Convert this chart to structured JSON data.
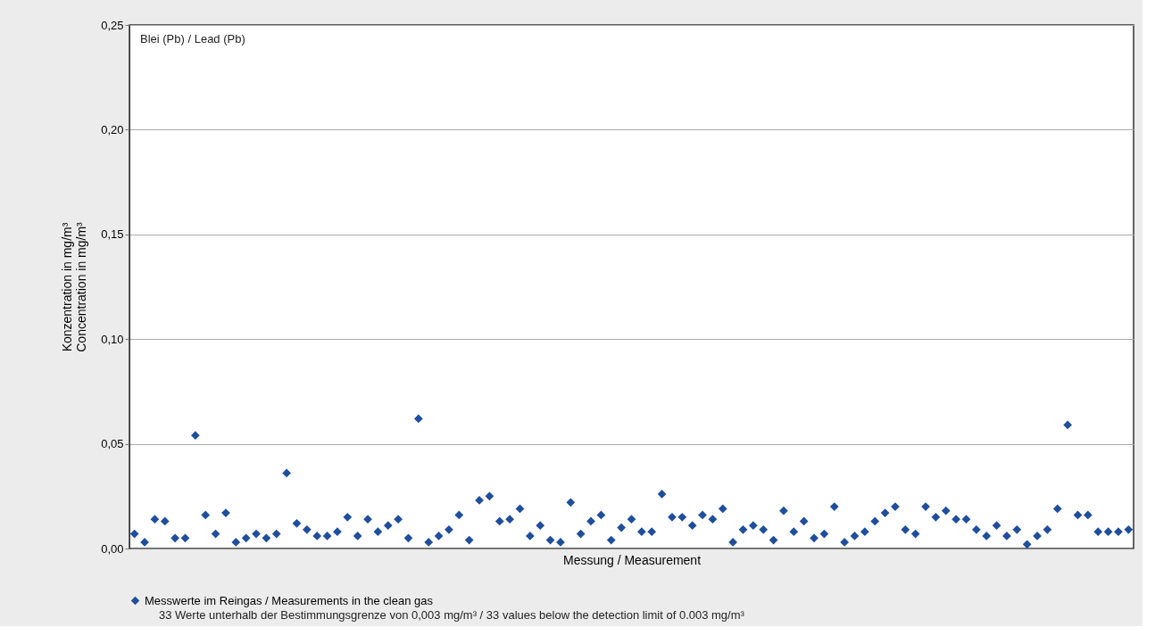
{
  "chart_data": {
    "type": "scatter",
    "annotations": [
      "Blei (Pb) / Lead (Pb)",
      "33 Werte unterhalb der Bestimmungsgrenze von 0,003 mg/m³ / 33 values below the detection limit of 0.003 mg/m³"
    ],
    "xlabel": "Messung / Measurement",
    "ylabel": [
      "Konzentration in mg/m³",
      "Concentration in mg/m³"
    ],
    "categories": [
      null,
      null,
      null,
      null,
      null,
      null,
      null,
      null,
      null,
      null,
      null,
      null,
      null,
      null,
      null,
      null,
      null,
      null,
      null,
      null,
      null,
      null,
      null,
      null,
      null,
      null,
      null,
      null,
      null,
      null,
      null,
      null,
      null,
      null,
      null,
      null,
      null,
      null,
      null,
      null,
      null,
      null,
      null,
      null,
      null,
      null,
      null,
      null,
      null,
      null,
      null,
      null,
      null,
      null,
      null,
      null,
      null,
      null,
      null,
      null,
      null,
      null,
      null,
      null,
      null,
      null,
      null,
      null,
      null,
      null,
      null,
      null,
      null,
      null,
      null,
      null,
      null,
      null,
      null,
      null,
      null,
      null,
      null,
      null,
      null,
      null,
      null,
      null,
      null,
      null,
      null,
      null,
      null,
      null,
      null,
      null,
      null,
      null,
      null
    ],
    "series": [
      {
        "name": "Messwerte im Reingas / Measurements in the clean gas",
        "color": "#1f4e9c",
        "values": [
          0.007,
          0.003,
          0.014,
          0.013,
          0.005,
          0.005,
          0.054,
          0.016,
          0.007,
          0.017,
          0.003,
          0.005,
          0.007,
          0.005,
          0.007,
          0.036,
          0.012,
          0.009,
          0.006,
          0.006,
          0.008,
          0.015,
          0.006,
          0.014,
          0.008,
          0.011,
          0.014,
          0.005,
          0.062,
          0.003,
          0.006,
          0.009,
          0.016,
          0.004,
          0.023,
          0.025,
          0.013,
          0.014,
          0.019,
          0.006,
          0.011,
          0.004,
          0.003,
          0.022,
          0.007,
          0.013,
          0.016,
          0.004,
          0.01,
          0.014,
          0.008,
          0.008,
          0.026,
          0.015,
          0.015,
          0.011,
          0.016,
          0.014,
          0.019,
          0.003,
          0.009,
          0.011,
          0.009,
          0.004,
          0.018,
          0.008,
          0.013,
          0.005,
          0.007,
          0.02,
          0.003,
          0.006,
          0.008,
          0.013,
          0.017,
          0.02,
          0.009,
          0.007,
          0.02,
          0.015,
          0.018,
          0.014,
          0.014,
          0.009,
          0.006,
          0.011,
          0.006,
          0.009,
          0.002,
          0.006,
          0.009,
          0.019,
          0.059,
          0.016,
          0.016,
          0.008,
          0.008,
          0.008,
          0.009
        ]
      }
    ],
    "ylim": [
      0,
      0.25
    ],
    "yticks": [
      {
        "value": 0,
        "label": "0,00"
      },
      {
        "value": 0.05,
        "label": "0,05"
      },
      {
        "value": 0.1,
        "label": "0,10"
      },
      {
        "value": 0.15,
        "label": "0,15"
      },
      {
        "value": 0.2,
        "label": "0,20"
      },
      {
        "value": 0.25,
        "label": "0,25"
      }
    ],
    "grid": "y",
    "legend": "bottom left",
    "marker": "diamond",
    "tick_labels": "y"
  }
}
